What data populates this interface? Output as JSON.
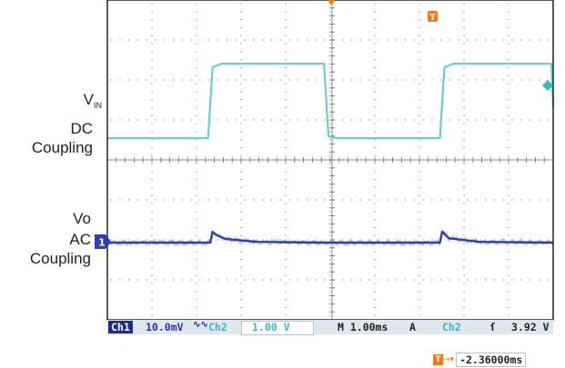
{
  "colors": {
    "ch1": "#2f3fa8",
    "ch2": "#6fcccc",
    "grid": "#8a8a8a",
    "frame": "#222222",
    "marker": "#f07a1a",
    "status_bg": "#dfe6ee"
  },
  "labels": {
    "ch2_name_main": "V",
    "ch2_name_sub": "IN",
    "ch2_coupling_1": "DC",
    "ch2_coupling_2": "Coupling",
    "ch1_name": "Vo",
    "ch1_coupling_1": "AC",
    "ch1_coupling_2": "Coupling"
  },
  "markers": {
    "ch1_ref": "1",
    "trigger": "T"
  },
  "status_bar": {
    "ch1_box": "Ch1",
    "ch1_scale": "10.0mV",
    "ch1_bw_symbol": "∿∿",
    "ch2_box": "Ch2",
    "ch2_scale": "1.00 V",
    "timebase": "M 1.00ms",
    "trigger_mode": "A",
    "trigger_source": "Ch2",
    "trigger_slope": "ſ",
    "trigger_level": "3.92 V"
  },
  "trigger_offset": {
    "icon": "T",
    "arrow": "→▾",
    "value": "-2.36000ms"
  },
  "chart_data": {
    "type": "line",
    "x_unit": "ms",
    "x_range": [
      -2.36,
      7.64
    ],
    "series": [
      {
        "name": "Ch2",
        "coupling": "DC",
        "scale_per_div": "1.00 V",
        "waveform": "square",
        "x": [
          -2.36,
          -0.1,
          0.0,
          0.2,
          2.5,
          2.6,
          2.8,
          5.1,
          5.2,
          5.4,
          7.6,
          7.64
        ],
        "y": [
          -1.0,
          -1.0,
          0.85,
          0.95,
          0.95,
          -0.95,
          -1.0,
          -1.0,
          0.85,
          0.95,
          0.95,
          -0.2
        ]
      },
      {
        "name": "Ch1",
        "coupling": "AC",
        "scale_per_div": "10.0mV",
        "waveform": "ripple with settling after each edge",
        "x": [
          -2.36,
          -0.05,
          0.0,
          0.1,
          0.3,
          1.0,
          2.5,
          5.1,
          5.15,
          5.3,
          6.0,
          7.64
        ],
        "y": [
          0.0,
          0.0,
          1.5,
          1.0,
          0.5,
          0.1,
          0.0,
          0.0,
          1.5,
          0.6,
          0.1,
          0.0
        ]
      }
    ]
  }
}
